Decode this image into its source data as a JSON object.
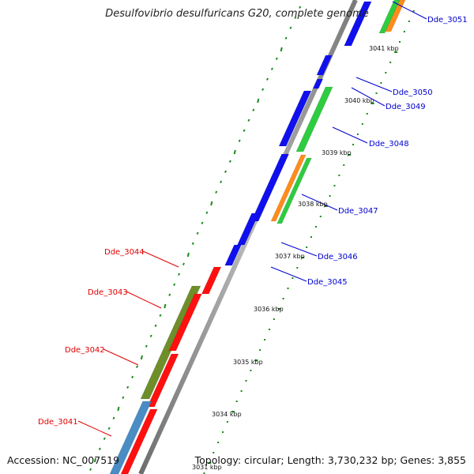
{
  "title": "Desulfovibrio desulfuricans G20, complete genome",
  "footer": {
    "accession": "Accession: NC_007519",
    "summary": "Topology: circular; Length: 3,730,232 bp; Genes: 3,855"
  },
  "colors": {
    "reverse_label": "#e00000",
    "forward_label": "#0000d0",
    "tick": "#1a8a1a",
    "backbone": "#8c8c8c"
  },
  "kbp_labels": [
    "3031 kbp",
    "3034 kbp",
    "3035 kbp",
    "3036 kbp",
    "3037 kbp",
    "3038 kbp",
    "3039 kbp",
    "3040 kbp",
    "3041 kbp"
  ],
  "genes_forward": [
    {
      "label": "Dde_3045"
    },
    {
      "label": "Dde_3046"
    },
    {
      "label": "Dde_3047"
    },
    {
      "label": "Dde_3048"
    },
    {
      "label": "Dde_3049"
    },
    {
      "label": "Dde_3050"
    },
    {
      "label": "Dde_3051"
    }
  ],
  "genes_reverse": [
    {
      "label": "Dde_3041"
    },
    {
      "label": "Dde_3042"
    },
    {
      "label": "Dde_3043"
    },
    {
      "label": "Dde_3044"
    }
  ]
}
